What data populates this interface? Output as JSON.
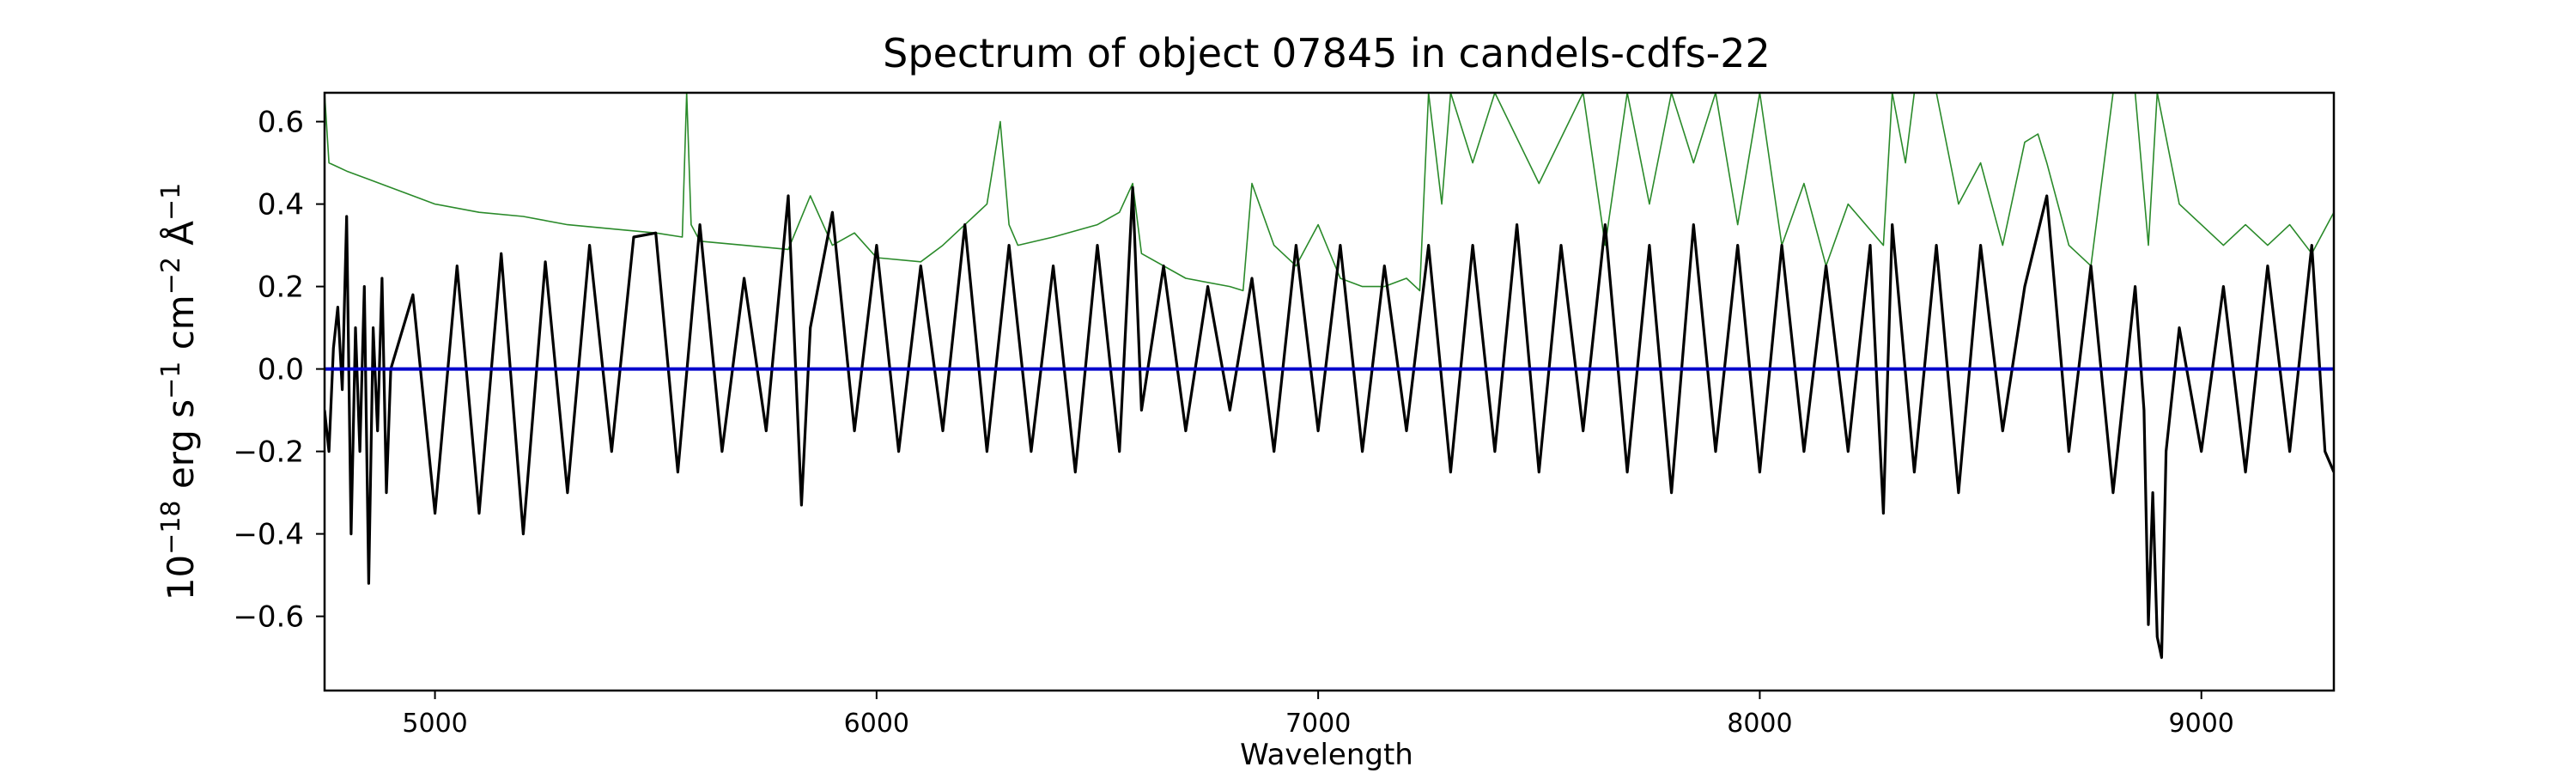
{
  "chart_data": {
    "type": "line",
    "title": "Spectrum of object 07845 in candels-cdfs-22",
    "xlabel": "Wavelength",
    "ylabel": {
      "base": "10",
      "exp1": "−18",
      "unit1": " erg s",
      "exp2": "−1",
      "unit2": " cm",
      "exp3": "−2",
      "unit3": " Å",
      "exp4": "−1"
    },
    "xlim": [
      4750,
      9300
    ],
    "ylim": [
      -0.78,
      0.67
    ],
    "xticks": [
      5000,
      6000,
      7000,
      8000,
      9000
    ],
    "yticks": [
      -0.6,
      -0.4,
      -0.2,
      0.0,
      0.2,
      0.4,
      0.6
    ],
    "ytick_labels": [
      "−0.6",
      "−0.4",
      "−0.2",
      "0.0",
      "0.2",
      "0.4",
      "0.6"
    ],
    "grid": false,
    "series": [
      {
        "color": "#2a8a2a",
        "style": "thin",
        "x": [
          4750,
          4760,
          4780,
          4800,
          4850,
          4900,
          4950,
          5000,
          5100,
          5200,
          5300,
          5400,
          5500,
          5560,
          5570,
          5580,
          5600,
          5700,
          5800,
          5850,
          5900,
          5950,
          6000,
          6100,
          6150,
          6200,
          6250,
          6280,
          6300,
          6320,
          6400,
          6500,
          6550,
          6580,
          6600,
          6700,
          6800,
          6830,
          6850,
          6900,
          6950,
          7000,
          7050,
          7100,
          7150,
          7200,
          7230,
          7250,
          7280,
          7300,
          7350,
          7400,
          7500,
          7600,
          7650,
          7700,
          7750,
          7800,
          7850,
          7900,
          7950,
          8000,
          8050,
          8100,
          8150,
          8200,
          8280,
          8300,
          8330,
          8350,
          8400,
          8450,
          8500,
          8550,
          8600,
          8630,
          8650,
          8700,
          8750,
          8800,
          8820,
          8850,
          8880,
          8900,
          8950,
          9000,
          9050,
          9100,
          9150,
          9200,
          9250,
          9300
        ],
        "y": [
          0.67,
          0.5,
          0.49,
          0.48,
          0.46,
          0.44,
          0.42,
          0.4,
          0.38,
          0.37,
          0.35,
          0.34,
          0.33,
          0.32,
          0.67,
          0.35,
          0.31,
          0.3,
          0.29,
          0.42,
          0.3,
          0.33,
          0.27,
          0.26,
          0.3,
          0.35,
          0.4,
          0.6,
          0.35,
          0.3,
          0.32,
          0.35,
          0.38,
          0.45,
          0.28,
          0.22,
          0.2,
          0.19,
          0.45,
          0.3,
          0.25,
          0.35,
          0.22,
          0.2,
          0.2,
          0.22,
          0.19,
          0.67,
          0.4,
          0.67,
          0.5,
          0.67,
          0.45,
          0.67,
          0.3,
          0.67,
          0.4,
          0.67,
          0.5,
          0.67,
          0.35,
          0.67,
          0.3,
          0.45,
          0.25,
          0.4,
          0.3,
          0.67,
          0.5,
          0.67,
          0.67,
          0.4,
          0.5,
          0.3,
          0.55,
          0.57,
          0.5,
          0.3,
          0.25,
          0.67,
          0.67,
          0.67,
          0.3,
          0.67,
          0.4,
          0.35,
          0.3,
          0.35,
          0.3,
          0.35,
          0.28,
          0.38
        ]
      },
      {
        "color": "#000000",
        "style": "thick",
        "x": [
          4750,
          4760,
          4770,
          4780,
          4790,
          4800,
          4810,
          4820,
          4830,
          4840,
          4850,
          4860,
          4870,
          4880,
          4890,
          4900,
          4950,
          5000,
          5050,
          5100,
          5150,
          5200,
          5250,
          5300,
          5350,
          5400,
          5450,
          5500,
          5550,
          5600,
          5650,
          5700,
          5750,
          5800,
          5830,
          5850,
          5900,
          5950,
          6000,
          6050,
          6100,
          6150,
          6200,
          6250,
          6300,
          6350,
          6400,
          6450,
          6500,
          6550,
          6580,
          6600,
          6650,
          6700,
          6750,
          6800,
          6850,
          6900,
          6950,
          7000,
          7050,
          7100,
          7150,
          7200,
          7250,
          7300,
          7350,
          7400,
          7450,
          7500,
          7550,
          7600,
          7650,
          7700,
          7750,
          7800,
          7850,
          7900,
          7950,
          8000,
          8050,
          8100,
          8150,
          8200,
          8250,
          8280,
          8300,
          8350,
          8400,
          8450,
          8500,
          8550,
          8600,
          8650,
          8700,
          8750,
          8800,
          8850,
          8870,
          8880,
          8890,
          8900,
          8910,
          8920,
          8950,
          9000,
          9050,
          9100,
          9150,
          9200,
          9250,
          9280,
          9300
        ],
        "y": [
          -0.1,
          -0.2,
          0.05,
          0.15,
          -0.05,
          0.37,
          -0.4,
          0.1,
          -0.2,
          0.2,
          -0.52,
          0.1,
          -0.15,
          0.22,
          -0.3,
          0.0,
          0.18,
          -0.35,
          0.25,
          -0.35,
          0.28,
          -0.4,
          0.26,
          -0.3,
          0.3,
          -0.2,
          0.32,
          0.33,
          -0.25,
          0.35,
          -0.2,
          0.22,
          -0.15,
          0.42,
          -0.33,
          0.1,
          0.38,
          -0.15,
          0.3,
          -0.2,
          0.25,
          -0.15,
          0.35,
          -0.2,
          0.3,
          -0.2,
          0.25,
          -0.25,
          0.3,
          -0.2,
          0.44,
          -0.1,
          0.25,
          -0.15,
          0.2,
          -0.1,
          0.22,
          -0.2,
          0.3,
          -0.15,
          0.3,
          -0.2,
          0.25,
          -0.15,
          0.3,
          -0.25,
          0.3,
          -0.2,
          0.35,
          -0.25,
          0.3,
          -0.15,
          0.35,
          -0.25,
          0.3,
          -0.3,
          0.35,
          -0.2,
          0.3,
          -0.25,
          0.3,
          -0.2,
          0.25,
          -0.2,
          0.3,
          -0.35,
          0.35,
          -0.25,
          0.3,
          -0.3,
          0.3,
          -0.15,
          0.2,
          0.42,
          -0.2,
          0.25,
          -0.3,
          0.2,
          -0.1,
          -0.62,
          -0.3,
          -0.65,
          -0.7,
          -0.2,
          0.1,
          -0.2,
          0.2,
          -0.25,
          0.25,
          -0.2,
          0.3,
          -0.2,
          -0.25
        ]
      },
      {
        "color": "#0000cc",
        "style": "flat",
        "x": [
          4750,
          9300
        ],
        "y": [
          0.0,
          0.0
        ]
      }
    ]
  }
}
